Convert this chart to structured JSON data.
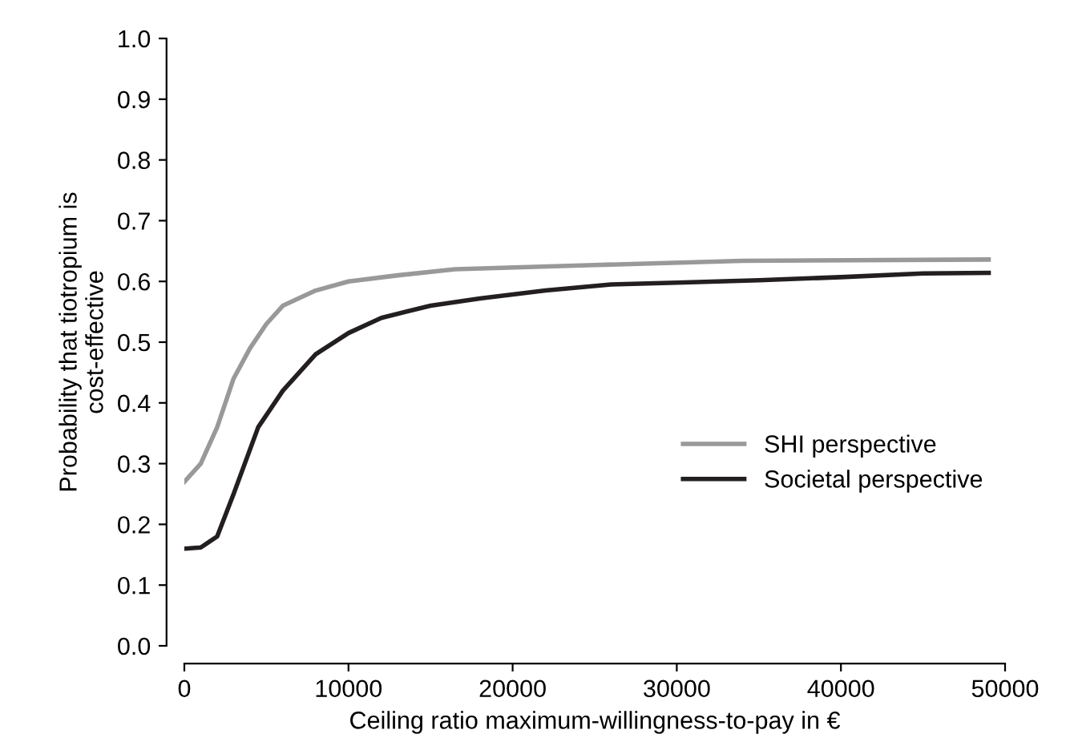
{
  "chart_data": {
    "type": "line",
    "xlabel": "Ceiling ratio maximum-willingness-to-pay in €",
    "ylabel": "Probability that tiotropium is\ncost-effective",
    "xlim": [
      0,
      50000
    ],
    "xticks": [
      0,
      10000,
      20000,
      30000,
      40000,
      50000
    ],
    "ylim": [
      0,
      1.0
    ],
    "yticks": [
      {
        "value": 0,
        "label": "0.0"
      },
      {
        "value": 0.1,
        "label": "0.1"
      },
      {
        "value": 0.2,
        "label": "0.2"
      },
      {
        "value": 0.3,
        "label": "0.3"
      },
      {
        "value": 0.4,
        "label": "0.4"
      },
      {
        "value": 0.5,
        "label": "0.5"
      },
      {
        "value": 0.6,
        "label": "0.6"
      },
      {
        "value": 0.7,
        "label": "0.7"
      },
      {
        "value": 0.8,
        "label": "0.8"
      },
      {
        "value": 0.9,
        "label": "0.9"
      },
      {
        "value": 1.0,
        "label": "1.0"
      }
    ],
    "grid": false,
    "legend": "right",
    "marker": "none",
    "line_style": "solid",
    "series": [
      {
        "name": "SHI perspective",
        "color": "#999999",
        "x": [
          0,
          1000,
          2000,
          3000,
          4000,
          5000,
          6000,
          8000,
          10000,
          13000,
          16500,
          25000,
          34000,
          49000
        ],
        "values": [
          0.27,
          0.3,
          0.36,
          0.44,
          0.49,
          0.53,
          0.56,
          0.585,
          0.6,
          0.61,
          0.62,
          0.627,
          0.634,
          0.636
        ]
      },
      {
        "name": "Societal perspective",
        "color": "#231f20",
        "x": [
          0,
          1000,
          2000,
          3000,
          4500,
          6000,
          8000,
          10000,
          12000,
          15000,
          18000,
          22000,
          26000,
          30000,
          35000,
          40000,
          45000,
          49000
        ],
        "values": [
          0.16,
          0.162,
          0.18,
          0.25,
          0.36,
          0.42,
          0.48,
          0.515,
          0.54,
          0.56,
          0.572,
          0.585,
          0.595,
          0.598,
          0.602,
          0.607,
          0.613,
          0.614
        ]
      }
    ]
  }
}
